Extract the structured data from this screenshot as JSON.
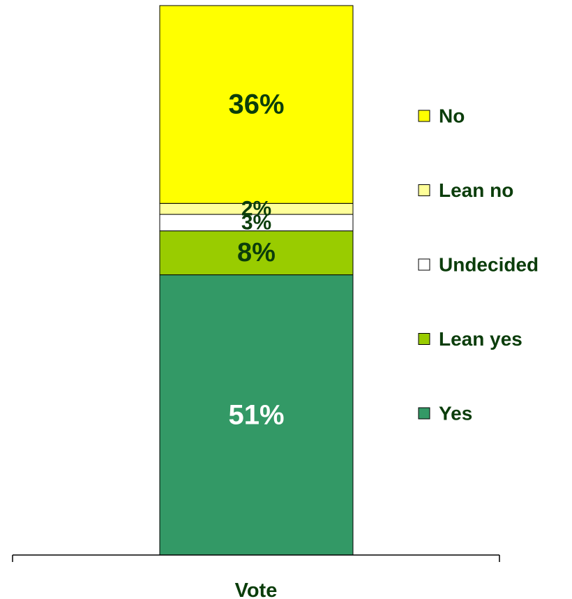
{
  "chart_data": {
    "type": "bar",
    "stacked": true,
    "categories": [
      "Vote"
    ],
    "series": [
      {
        "name": "Yes",
        "values": [
          51
        ],
        "label": "51%",
        "color": "#339966",
        "label_color": "#ffffff"
      },
      {
        "name": "Lean yes",
        "values": [
          8
        ],
        "label": "8%",
        "color": "#99cc00",
        "label_color": "#0b3d0b"
      },
      {
        "name": "Undecided",
        "values": [
          3
        ],
        "label": "3%",
        "color": "#ffffff",
        "label_color": "#0b3d0b"
      },
      {
        "name": "Lean no",
        "values": [
          2
        ],
        "label": "2%",
        "color": "#ffff99",
        "label_color": "#0b3d0b"
      },
      {
        "name": "No",
        "values": [
          36
        ],
        "label": "36%",
        "color": "#ffff00",
        "label_color": "#0b3d0b"
      }
    ],
    "legend_order": [
      "No",
      "Lean no",
      "Undecided",
      "Lean yes",
      "Yes"
    ],
    "legend_position": "right",
    "ylim": [
      0,
      100
    ],
    "grid": false
  }
}
